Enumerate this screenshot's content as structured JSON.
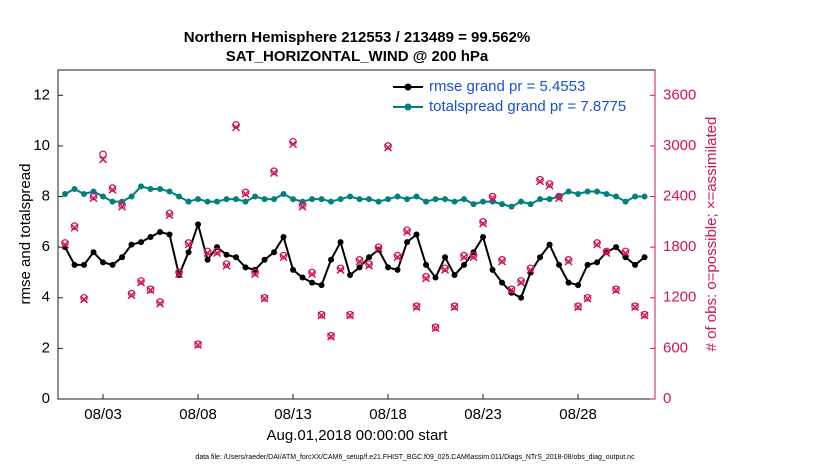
{
  "chart_data": {
    "type": "line",
    "title": "Northern Hemisphere 212553 / 213489 = 99.562%",
    "subtitle": "SAT_HORIZONTAL_WIND @ 200 hPa",
    "xlabel": "Aug.01,2018 00:00:00 start",
    "ylabel": "rmse and totalspread",
    "y2label": "# of obs: o=possible; ×=assimilated",
    "footnote": "data file: /Users/raeder/DAI/ATM_forcXX/CAM6_setup/f.e21.FHIST_BGC.f09_025.CAM6assim.011/Diags_NTrS_2018-08/obs_diag_output.nc",
    "legend": "upper right",
    "xlim": [
      0.63,
      32.05
    ],
    "xticks": [
      {
        "value": 3,
        "label": "08/03"
      },
      {
        "value": 8,
        "label": "08/08"
      },
      {
        "value": 13,
        "label": "08/13"
      },
      {
        "value": 18,
        "label": "08/18"
      },
      {
        "value": 23,
        "label": "08/23"
      },
      {
        "value": 28,
        "label": "08/28"
      }
    ],
    "ylim": [
      0,
      13
    ],
    "yticks": [
      0,
      2,
      4,
      6,
      8,
      10,
      12
    ],
    "y2lim": [
      0,
      3900
    ],
    "y2ticks": [
      0,
      600,
      1200,
      1800,
      2400,
      3000,
      3600
    ],
    "x": [
      1,
      1.5,
      2,
      2.5,
      3,
      3.5,
      4,
      4.5,
      5,
      5.5,
      6,
      6.5,
      7,
      7.5,
      8,
      8.5,
      9,
      9.5,
      10,
      10.5,
      11,
      11.5,
      12,
      12.5,
      13,
      13.5,
      14,
      14.5,
      15,
      15.5,
      16,
      16.5,
      17,
      17.5,
      18,
      18.5,
      19,
      19.5,
      20,
      20.5,
      21,
      21.5,
      22,
      22.5,
      23,
      23.5,
      24,
      24.5,
      25,
      25.5,
      26,
      26.5,
      27,
      27.5,
      28,
      28.5,
      29,
      29.5,
      30,
      30.5,
      31,
      31.5
    ],
    "series": [
      {
        "name": "rmse grand pr = 5.4553",
        "color": "#000000",
        "marker": "dot",
        "values": [
          6.0,
          5.3,
          5.3,
          5.8,
          5.4,
          5.3,
          5.6,
          6.1,
          6.2,
          6.4,
          6.6,
          6.5,
          4.9,
          5.8,
          6.9,
          5.5,
          6.0,
          5.7,
          5.6,
          5.2,
          5.1,
          5.5,
          5.8,
          6.4,
          5.1,
          4.8,
          4.6,
          4.5,
          5.5,
          6.2,
          4.9,
          5.2,
          5.6,
          5.9,
          5.2,
          5.1,
          6.2,
          6.5,
          5.3,
          4.8,
          5.6,
          4.9,
          5.3,
          5.8,
          6.4,
          5.1,
          4.6,
          4.2,
          4.0,
          5.0,
          5.6,
          6.1,
          5.3,
          4.6,
          4.5,
          5.3,
          5.4,
          5.8,
          6.0,
          5.6,
          5.3,
          5.6
        ]
      },
      {
        "name": "totalspread grand pr = 7.8775",
        "color": "#00807f",
        "marker": "dot",
        "values": [
          8.1,
          8.3,
          8.1,
          8.2,
          8.0,
          7.8,
          7.8,
          8.0,
          8.4,
          8.3,
          8.3,
          8.2,
          8.0,
          7.8,
          7.9,
          7.8,
          7.8,
          7.9,
          7.9,
          7.8,
          8.0,
          7.9,
          7.9,
          8.1,
          7.9,
          7.8,
          7.9,
          7.9,
          7.8,
          7.9,
          8.0,
          7.9,
          7.9,
          7.8,
          7.9,
          8.0,
          7.9,
          8.0,
          7.8,
          7.9,
          7.9,
          7.8,
          7.9,
          7.7,
          7.8,
          7.8,
          7.7,
          7.6,
          7.8,
          7.7,
          7.9,
          7.9,
          8.0,
          8.2,
          8.1,
          8.2,
          8.2,
          8.1,
          8.0,
          7.8,
          8.0,
          8.0
        ]
      },
      {
        "color": "#d1145a",
        "marker": "o",
        "axis": "y2",
        "values": [
          1850,
          2050,
          1200,
          2400,
          2900,
          2500,
          2300,
          1250,
          1400,
          1300,
          1150,
          2200,
          1500,
          1850,
          650,
          1750,
          1750,
          1600,
          3250,
          2450,
          1500,
          1200,
          2700,
          1700,
          3050,
          2300,
          1500,
          1000,
          750,
          1550,
          1000,
          1650,
          1600,
          1800,
          3000,
          1700,
          2000,
          1100,
          1450,
          850,
          1550,
          1100,
          1700,
          1700,
          2100,
          2400,
          1650,
          1300,
          1400,
          1550,
          2600,
          2550,
          2400,
          1650,
          1100,
          1200,
          1850,
          1750,
          1300,
          1750,
          1100,
          1000
        ]
      },
      {
        "color": "#d1145a",
        "marker": "x",
        "axis": "y2",
        "values": [
          1830,
          2030,
          1180,
          2380,
          2840,
          2480,
          2280,
          1230,
          1380,
          1290,
          1130,
          2180,
          1480,
          1830,
          640,
          1730,
          1730,
          1580,
          3220,
          2430,
          1480,
          1190,
          2680,
          1680,
          3020,
          2280,
          1480,
          990,
          740,
          1530,
          990,
          1630,
          1580,
          1780,
          2980,
          1680,
          1980,
          1090,
          1430,
          840,
          1530,
          1090,
          1680,
          1680,
          2080,
          2380,
          1630,
          1290,
          1380,
          1530,
          2580,
          2530,
          2380,
          1630,
          1090,
          1190,
          1830,
          1730,
          1290,
          1730,
          1090,
          990
        ]
      }
    ]
  }
}
